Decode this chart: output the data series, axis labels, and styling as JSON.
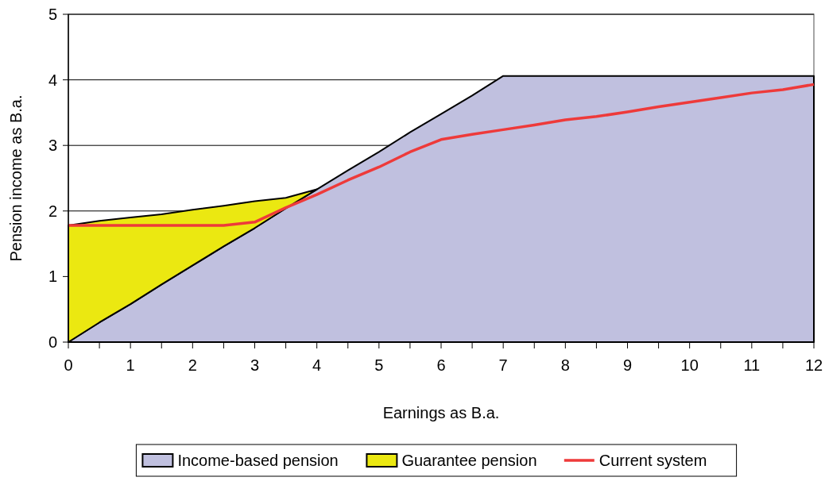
{
  "chart_data": {
    "type": "area",
    "xlabel": "Earnings as B.a.",
    "ylabel": "Pension income as B.a.",
    "stacked": true,
    "grid": "y",
    "legend": "bottom",
    "x": [
      0,
      0.5,
      1,
      1.5,
      2,
      2.5,
      3,
      3.5,
      4,
      4.5,
      5,
      5.5,
      6,
      6.5,
      7,
      7.5,
      8,
      8.5,
      9,
      9.5,
      10,
      10.5,
      11,
      11.5,
      12
    ],
    "xlim": [
      0,
      12
    ],
    "xticks": [
      0,
      {
        "value": 0.5,
        "label": null
      },
      1,
      {
        "value": 1.5,
        "label": null
      },
      2,
      {
        "value": 2.5,
        "label": null
      },
      3,
      {
        "value": 3.5,
        "label": null
      },
      4,
      {
        "value": 4.5,
        "label": null
      },
      5,
      {
        "value": 5.5,
        "label": null
      },
      6,
      {
        "value": 6.5,
        "label": null
      },
      7,
      {
        "value": 7.5,
        "label": null
      },
      8,
      {
        "value": 8.5,
        "label": null
      },
      9,
      {
        "value": 9.5,
        "label": null
      },
      10,
      {
        "value": 10.5,
        "label": null
      },
      11,
      {
        "value": 11.5,
        "label": null
      },
      12
    ],
    "ylim": [
      0,
      5
    ],
    "yticks": [
      0,
      1,
      2,
      3,
      4,
      5
    ],
    "series": [
      {
        "name": "Income-based pension",
        "color": "#c0c0df",
        "values": [
          0,
          0.3,
          0.58,
          0.88,
          1.17,
          1.46,
          1.74,
          2.04,
          2.33,
          2.62,
          2.9,
          3.2,
          3.48,
          3.76,
          4.06,
          4.06,
          4.06,
          4.06,
          4.06,
          4.06,
          4.06,
          4.06,
          4.06,
          4.06,
          4.06
        ]
      },
      {
        "name": "Guarantee pension",
        "color": "#ebe811",
        "values": [
          1.78,
          1.55,
          1.32,
          1.07,
          0.85,
          0.62,
          0.41,
          0.16,
          0,
          null,
          null,
          null,
          null,
          null,
          null,
          null,
          null,
          null,
          null,
          null,
          null,
          null,
          null,
          null,
          null
        ]
      },
      {
        "name": "Current system",
        "type": "line",
        "color": "#ee3a3a",
        "values": [
          1.78,
          1.78,
          1.78,
          1.78,
          1.78,
          1.78,
          1.83,
          2.05,
          2.25,
          2.47,
          2.67,
          2.9,
          3.09,
          3.17,
          3.24,
          3.31,
          3.39,
          3.44,
          3.51,
          3.59,
          3.66,
          3.73,
          3.8,
          3.85,
          3.93
        ]
      }
    ]
  }
}
